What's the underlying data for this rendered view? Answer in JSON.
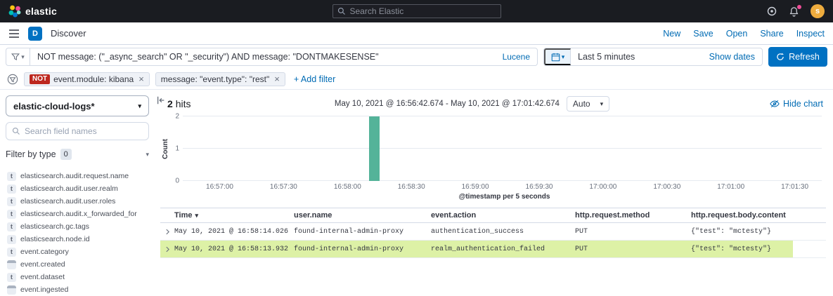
{
  "header": {
    "brand": "elastic",
    "search_placeholder": "Search Elastic",
    "avatar_initial": "s"
  },
  "nav": {
    "deployment_badge": "D",
    "breadcrumb": "Discover",
    "actions": [
      "New",
      "Save",
      "Open",
      "Share",
      "Inspect"
    ]
  },
  "query_bar": {
    "query": "NOT message: (\"_async_search\" OR \"_security\") AND message: \"DONTMAKESENSE\"",
    "language": "Lucene",
    "time_range": "Last 5 minutes",
    "show_dates_label": "Show dates",
    "refresh_label": "Refresh"
  },
  "filter_bar": {
    "close_icon": "×",
    "filters": [
      {
        "negated": true,
        "not_label": "NOT",
        "label": "event.module: kibana"
      },
      {
        "negated": false,
        "label": "message: \"event.type\": \"rest\""
      }
    ],
    "add_filter_label": "+ Add filter"
  },
  "sidebar": {
    "index_pattern": "elastic-cloud-logs*",
    "search_placeholder": "Search field names",
    "filter_by_type_label": "Filter by type",
    "filter_count": "0",
    "fields": [
      {
        "type": "string",
        "name": "elasticsearch.audit.request.name"
      },
      {
        "type": "string",
        "name": "elasticsearch.audit.user.realm"
      },
      {
        "type": "string",
        "name": "elasticsearch.audit.user.roles"
      },
      {
        "type": "string",
        "name": "elasticsearch.audit.x_forwarded_for"
      },
      {
        "type": "string",
        "name": "elasticsearch.gc.tags"
      },
      {
        "type": "string",
        "name": "elasticsearch.node.id"
      },
      {
        "type": "string",
        "name": "event.category"
      },
      {
        "type": "date",
        "name": "event.created"
      },
      {
        "type": "string",
        "name": "event.dataset"
      },
      {
        "type": "date",
        "name": "event.ingested"
      }
    ]
  },
  "results": {
    "hits_count": "2",
    "hits_label": "hits",
    "time_title": "May 10, 2021 @ 16:56:42.674 - May 10, 2021 @ 17:01:42.674",
    "interval_value": "Auto",
    "hide_chart_label": "Hide chart"
  },
  "chart_data": {
    "type": "bar",
    "title": "May 10, 2021 @ 16:56:42.674 - May 10, 2021 @ 17:01:42.674",
    "xlabel": "@timestamp per 5 seconds",
    "ylabel": "Count",
    "ylim": [
      0,
      2
    ],
    "y_ticks": [
      0,
      1,
      2
    ],
    "x_domain": {
      "start": "16:56:42.674",
      "end": "17:01:42.674"
    },
    "x_ticks": [
      "16:57:00",
      "16:57:30",
      "16:58:00",
      "16:58:30",
      "16:59:00",
      "16:59:30",
      "17:00:00",
      "17:00:30",
      "17:01:00",
      "17:01:30"
    ],
    "bars": [
      {
        "x": "16:58:10",
        "span_seconds": 5,
        "count": 2
      }
    ],
    "bar_color": "#54b399",
    "grid": true,
    "legend": false
  },
  "table": {
    "columns": [
      "Time",
      "user.name",
      "event.action",
      "http.request.method",
      "http.request.body.content"
    ],
    "sorted_column": "Time",
    "sort_direction": "desc",
    "rows": [
      {
        "highlight": false,
        "cells": [
          "May 10, 2021 @ 16:58:14.026",
          "found-internal-admin-proxy",
          "authentication_success",
          "PUT",
          "{\"test\": \"mctesty\"}"
        ]
      },
      {
        "highlight": true,
        "cells": [
          "May 10, 2021 @ 16:58:13.932",
          "found-internal-admin-proxy",
          "realm_authentication_failed",
          "PUT",
          "{\"test\": \"mctesty\"}"
        ]
      }
    ]
  },
  "colors": {
    "accent_link": "#006bb4",
    "primary_button": "#0071c2",
    "bar": "#54b399",
    "row_highlight": "#ddf1a6",
    "negate_red": "#bd271e",
    "header_bg": "#1a1c21"
  }
}
